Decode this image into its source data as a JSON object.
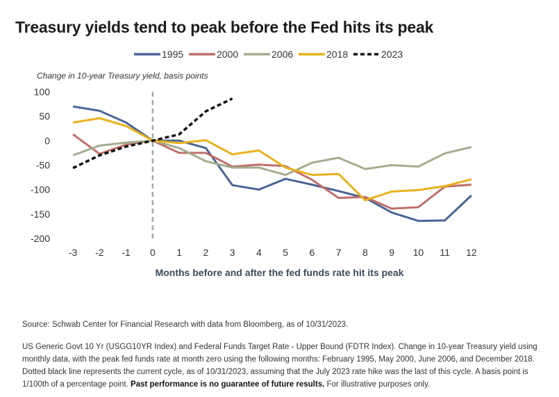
{
  "title": "Treasury yields tend to peak before the Fed hits its peak",
  "source": "Source: Schwab Center for Financial Research with data from Bloomberg, as of 10/31/2023.",
  "notes": {
    "text": "US Generic Govt 10 Yr (USGG10YR Index) and Federal Funds Target Rate - Upper Bound (FDTR Index). Change in 10-year Treasury yield using monthly data, with the peak fed funds rate at month zero using the following months: February 1995, May 2000, June 2006, and December 2018. Dotted black line represents the current cycle, as of 10/31/2023, assuming that the July 2023 rate hike was the last of this cycle. A basis point is 1/100th of a percentage point.",
    "emphasis": "Past performance is no guarantee of future results.",
    "tail": "For illustrative purposes only."
  },
  "chart_data": {
    "type": "line",
    "ylabel": "Change in 10-year Treasury yield, basis points",
    "xlabel": "Months before and after the fed funds rate hit its peak",
    "x": [
      -3,
      -2,
      -1,
      0,
      1,
      2,
      3,
      4,
      5,
      6,
      7,
      8,
      9,
      10,
      11,
      12
    ],
    "xlim": [
      -3.5,
      12.5
    ],
    "ylim": [
      -200,
      100
    ],
    "yticks": [
      100,
      50,
      0,
      -50,
      -100,
      -150,
      -200
    ],
    "grid": false,
    "legend": "top",
    "vline": {
      "x": 0,
      "style": "dashed",
      "color": "#a6a6a6"
    },
    "series": [
      {
        "name": "1995",
        "color": "#4a6496",
        "dashed": false,
        "values": [
          70,
          61,
          37,
          0,
          0,
          -15,
          -91,
          -100,
          -78,
          -90,
          -103,
          -117,
          -147,
          -164,
          -163,
          -112
        ]
      },
      {
        "name": "2000",
        "color": "#bf6f6a",
        "dashed": false,
        "values": [
          13,
          -27,
          -8,
          0,
          -25,
          -25,
          -53,
          -49,
          -52,
          -80,
          -117,
          -115,
          -139,
          -136,
          -94,
          -90
        ]
      },
      {
        "name": "2006",
        "color": "#a3ad8f",
        "dashed": false,
        "values": [
          -30,
          -10,
          -4,
          0,
          -15,
          -42,
          -55,
          -55,
          -70,
          -45,
          -35,
          -58,
          -50,
          -53,
          -26,
          -13
        ]
      },
      {
        "name": "2018",
        "color": "#e8b21c",
        "dashed": false,
        "values": [
          37,
          46,
          30,
          0,
          -5,
          1,
          -28,
          -20,
          -55,
          -70,
          -68,
          -122,
          -104,
          -101,
          -93,
          -79
        ]
      },
      {
        "name": "2023",
        "color": "#111111",
        "dashed": true,
        "values": [
          -56,
          -30,
          -12,
          0,
          13,
          60,
          86,
          null,
          null,
          null,
          null,
          null,
          null,
          null,
          null,
          null
        ]
      }
    ]
  }
}
